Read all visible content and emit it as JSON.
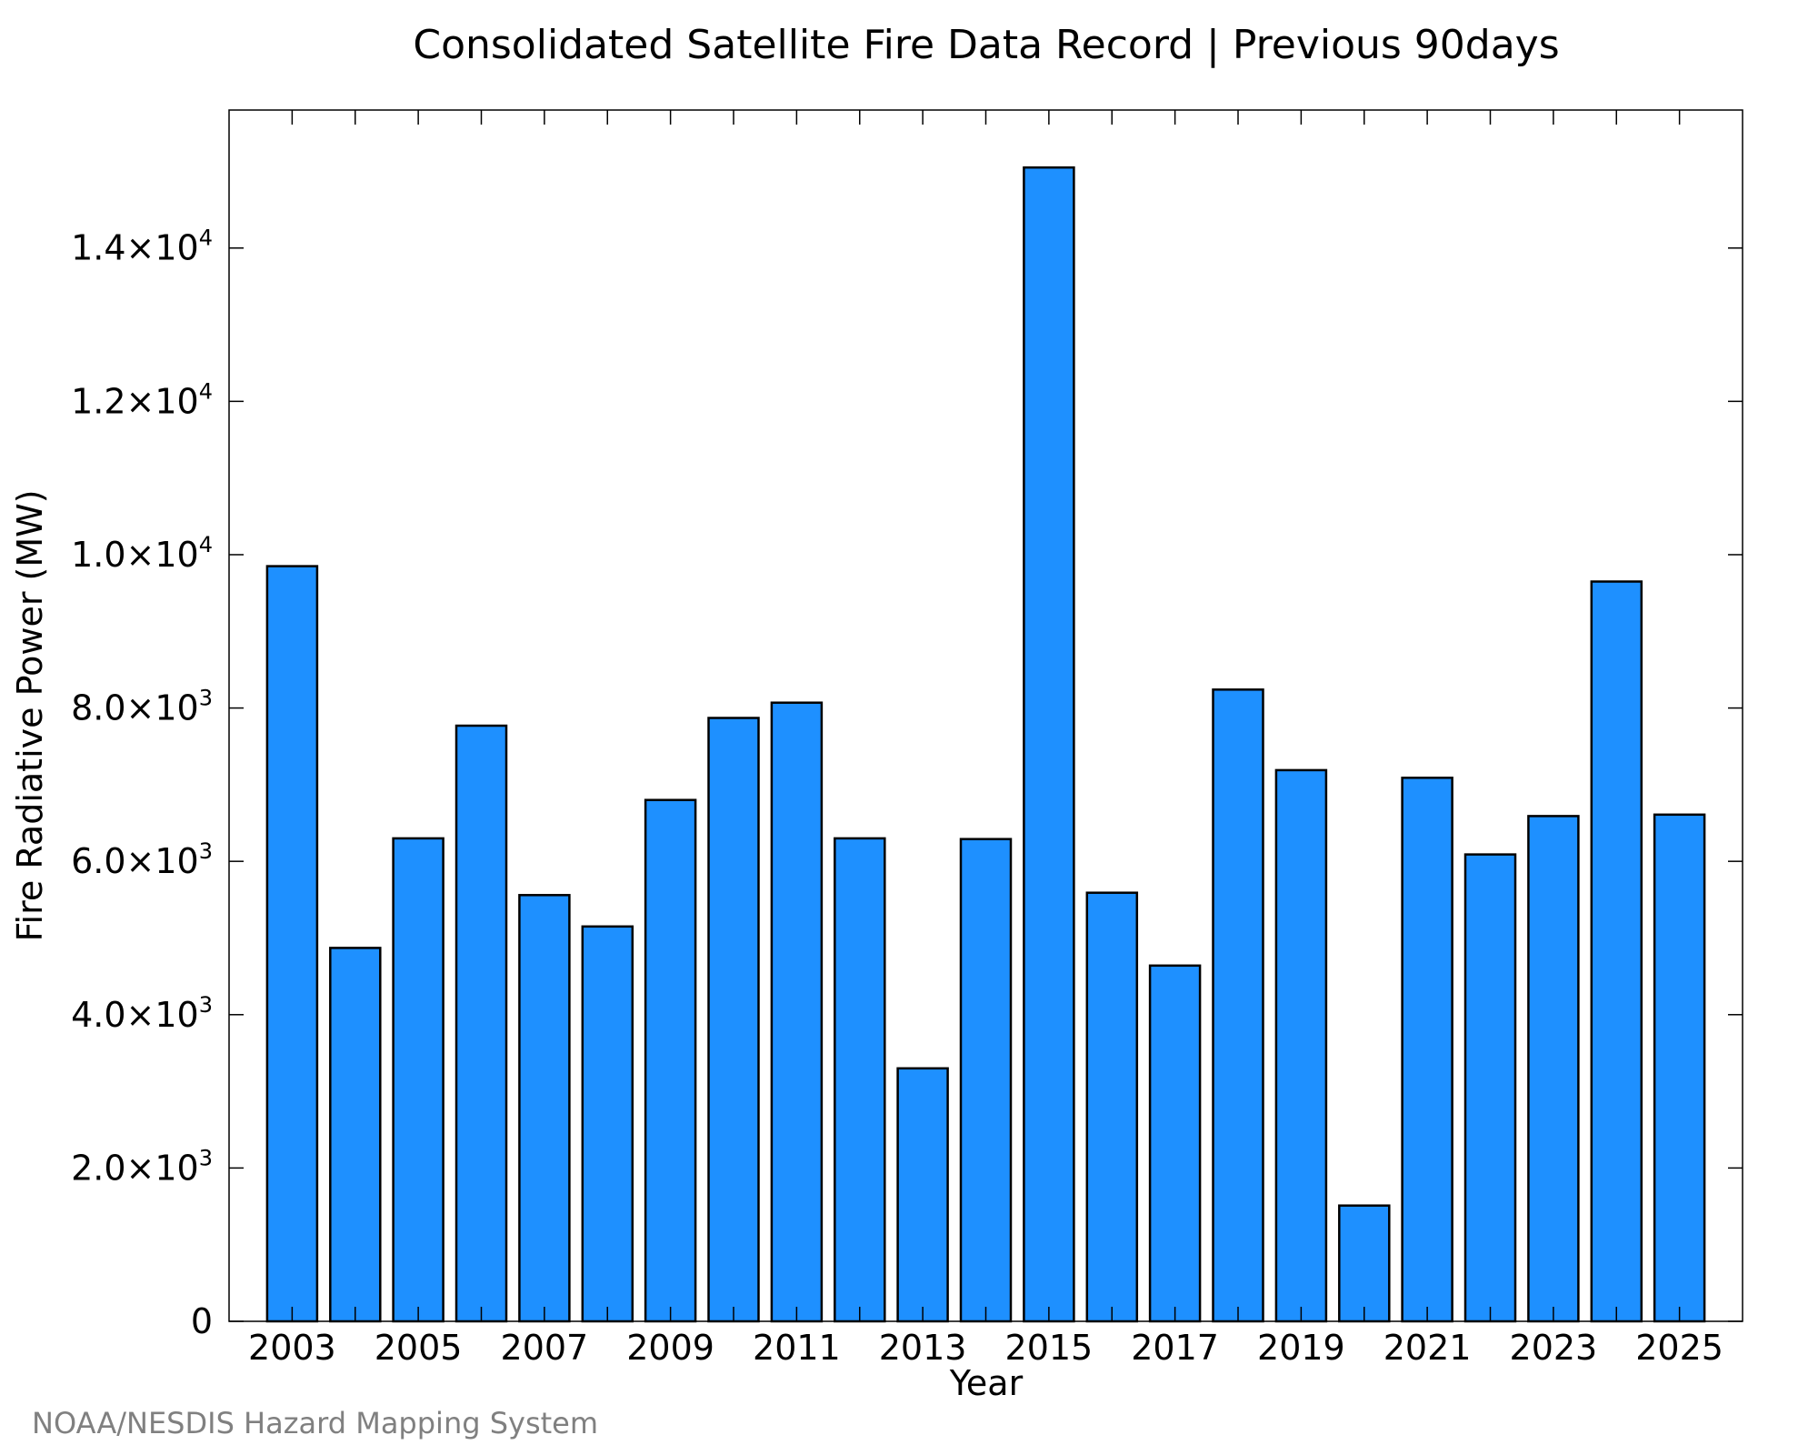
{
  "chart_data": {
    "type": "bar",
    "title": "Consolidated Satellite Fire Data Record | Previous 90days",
    "xlabel": "Year",
    "ylabel": "Fire Radiative Power (MW)",
    "categories": [
      "2003",
      "2004",
      "2005",
      "2006",
      "2007",
      "2008",
      "2009",
      "2010",
      "2011",
      "2012",
      "2013",
      "2014",
      "2015",
      "2016",
      "2017",
      "2018",
      "2019",
      "2020",
      "2021",
      "2022",
      "2023",
      "2024",
      "2025"
    ],
    "x_tick_labels": [
      "2003",
      "2005",
      "2007",
      "2009",
      "2011",
      "2013",
      "2015",
      "2017",
      "2019",
      "2021",
      "2023",
      "2025"
    ],
    "values": [
      9850,
      4870,
      6300,
      7770,
      5560,
      5150,
      6800,
      7870,
      8070,
      6300,
      3300,
      6290,
      15050,
      5590,
      4640,
      8240,
      7190,
      1510,
      7090,
      6090,
      6590,
      9650,
      6610
    ],
    "ylim": [
      0,
      15800
    ],
    "y_ticks": [
      {
        "value": 0,
        "mantissa": "0",
        "exp": ""
      },
      {
        "value": 2000,
        "mantissa": "2.0×10",
        "exp": "3"
      },
      {
        "value": 4000,
        "mantissa": "4.0×10",
        "exp": "3"
      },
      {
        "value": 6000,
        "mantissa": "6.0×10",
        "exp": "3"
      },
      {
        "value": 8000,
        "mantissa": "8.0×10",
        "exp": "3"
      },
      {
        "value": 10000,
        "mantissa": "1.0×10",
        "exp": "4"
      },
      {
        "value": 12000,
        "mantissa": "1.2×10",
        "exp": "4"
      },
      {
        "value": 14000,
        "mantissa": "1.4×10",
        "exp": "4"
      }
    ],
    "grid": false,
    "legend": "none",
    "colors": {
      "bar_fill": "#1E90FF",
      "bar_stroke": "#000000",
      "credit_text": "#808080"
    }
  },
  "credit": "NOAA/NESDIS Hazard Mapping System"
}
